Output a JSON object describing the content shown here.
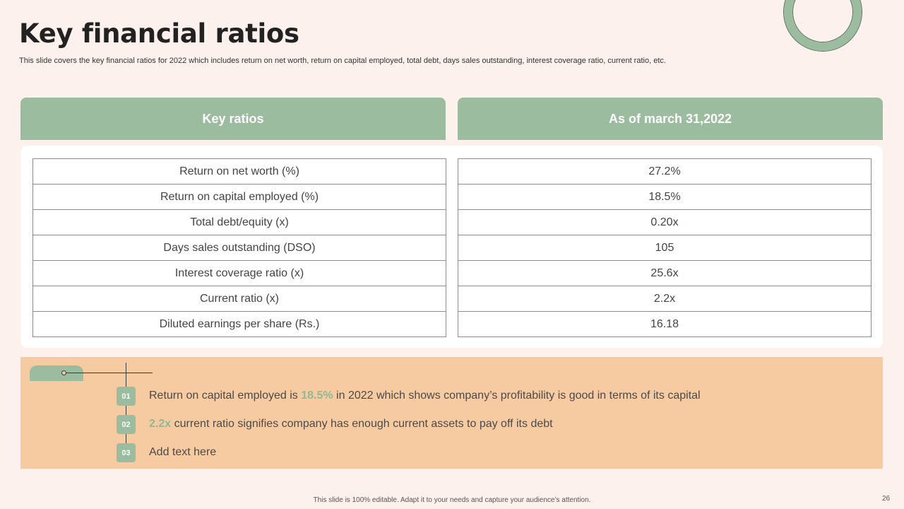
{
  "title": "Key financial ratios",
  "subtitle": "This slide covers the key financial ratios for 2022 which includes return on net worth, return on capital employed, total debt, days sales outstanding, interest coverage ratio, current ratio, etc.",
  "headers": {
    "left": "Key ratios",
    "right": "As of march 31,2022"
  },
  "ratios": [
    {
      "name": "Return on net worth (%)",
      "value": "27.2%"
    },
    {
      "name": "Return on capital employed (%)",
      "value": "18.5%"
    },
    {
      "name": "Total debt/equity (x)",
      "value": "0.20x"
    },
    {
      "name": "Days sales outstanding (DSO)",
      "value": "105"
    },
    {
      "name": "Interest coverage ratio (x)",
      "value": "25.6x"
    },
    {
      "name": "Current ratio (x)",
      "value": "2.2x"
    },
    {
      "name": "Diluted earnings per share (Rs.)",
      "value": "16.18"
    }
  ],
  "points": [
    {
      "num": "01",
      "pre": "Return on capital employed is ",
      "highlight": "18.5%",
      "post": " in 2022 which shows company’s profitability is good in terms of its capital"
    },
    {
      "num": "02",
      "pre": "",
      "highlight": "2.2x",
      "post": " current ratio signifies company has enough current assets to pay off its debt"
    },
    {
      "num": "03",
      "pre": "Add text here",
      "highlight": "",
      "post": ""
    }
  ],
  "footer": "This slide is 100% editable. Adapt it to your needs and capture your audience’s attention.",
  "page_number": "26",
  "colors": {
    "background": "#fdf1ee",
    "accent_green": "#9bbc9f",
    "panel_orange": "#f7cba2",
    "highlight": "#8fba96"
  }
}
